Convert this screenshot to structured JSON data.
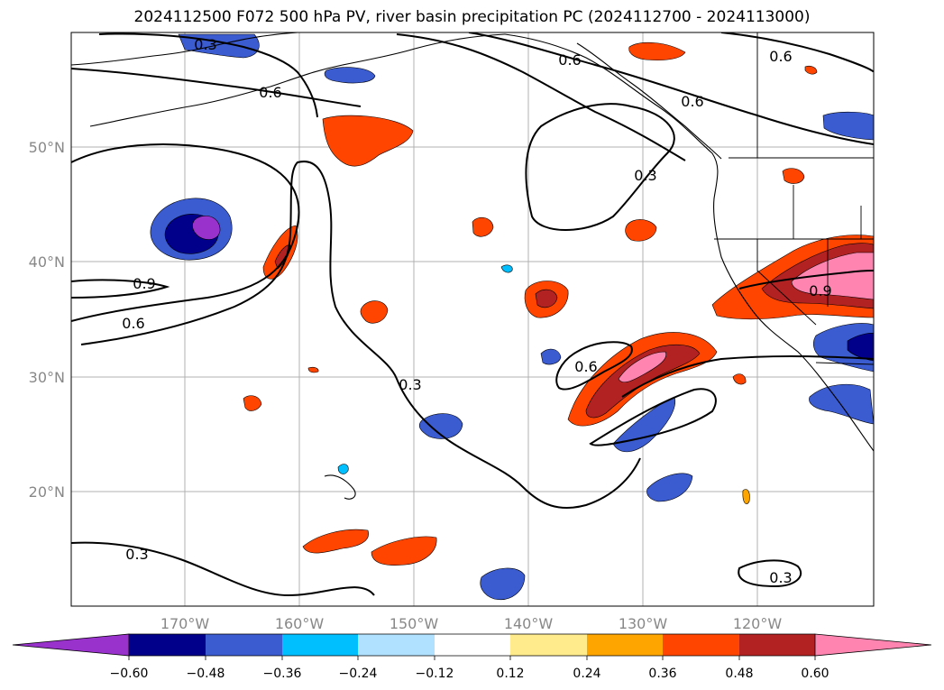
{
  "title": "2024112500 F072 500 hPa PV, river basin precipitation PC (2024112700 - 2024113000)",
  "axes": {
    "lat_ticks": [
      "50°N",
      "40°N",
      "30°N",
      "20°N"
    ],
    "lon_ticks": [
      "170°W",
      "160°W",
      "150°W",
      "140°W",
      "130°W",
      "120°W"
    ]
  },
  "contour_labels": {
    "a": "0.3",
    "b": "0.6",
    "c": "0.6",
    "d": "0.6",
    "e": "0.6",
    "f": "0.3",
    "g": "0.9",
    "h": "0.6",
    "i": "0.3",
    "j": "0.6",
    "k": "0.9",
    "l": "0.3",
    "m": "0.3"
  },
  "colorbar": {
    "tick_labels": [
      "−0.60",
      "−0.48",
      "−0.36",
      "−0.24",
      "−0.12",
      "0.12",
      "0.24",
      "0.36",
      "0.48",
      "0.60"
    ],
    "colors": {
      "under": "#9932cc",
      "bin1": "#00008b",
      "bin2": "#3b5bd1",
      "bin3": "#00bfff",
      "bin4": "#b0e2ff",
      "bin5": "#ffffff",
      "bin6": "#ffeb8c",
      "bin7": "#ffa500",
      "bin8": "#ff4500",
      "bin9": "#b22222",
      "over": "#ff85b0"
    }
  }
}
